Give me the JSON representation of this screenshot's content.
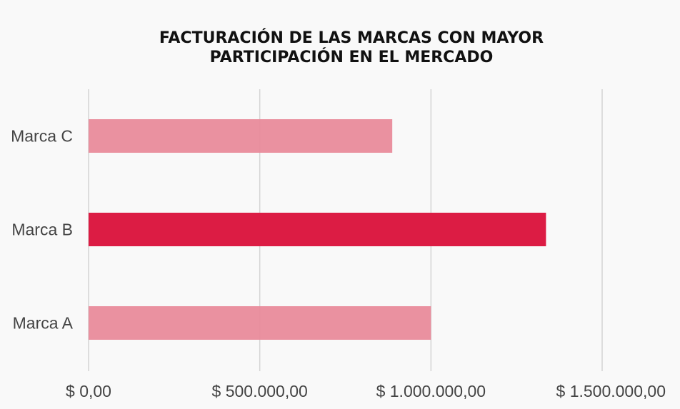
{
  "chart_data": {
    "type": "bar",
    "orientation": "horizontal",
    "title_lines": [
      "FACTURACIÓN DE LAS MARCAS CON MAYOR",
      "PARTICIPACIÓN EN EL MERCADO"
    ],
    "categories": [
      "Marca C",
      "Marca B",
      "Marca A"
    ],
    "values": [
      887000,
      1336000,
      1000000
    ],
    "highlight_category": "Marca B",
    "xlim": [
      0,
      1500000
    ],
    "xticks": [
      0,
      500000,
      1000000,
      1500000
    ],
    "xtick_labels": [
      "$ 0,00",
      "$ 500.000,00",
      "$ 1.000.000,00",
      "$ 1.500.000,00"
    ],
    "grid": true,
    "colors": {
      "bar": "#e98b9b",
      "highlight": "#dc1c44",
      "grid": "#d4d4d4",
      "background": "#f9f9f9"
    }
  }
}
